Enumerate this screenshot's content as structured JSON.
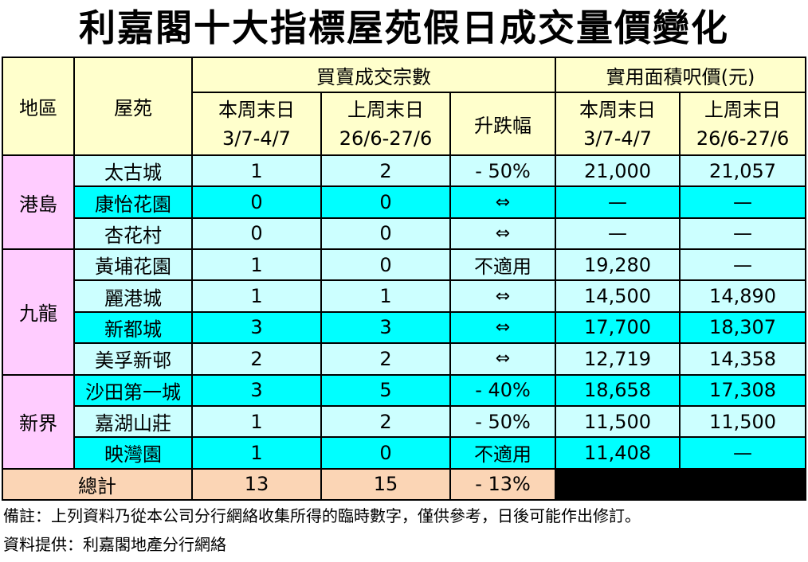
{
  "title": "利嘉閣十大指標屋苑假日成交量價變化",
  "headers": {
    "region": "地區",
    "estate": "屋苑",
    "transactions_group": "買賣成交宗數",
    "price_group": "實用面積呎價(元)",
    "this_weekend": "本周末日",
    "this_weekend_dates": "3/7-4/7",
    "last_weekend": "上周末日",
    "last_weekend_dates": "26/6-27/6",
    "change": "升跌幅"
  },
  "regions": [
    {
      "name": "港島",
      "rows": [
        {
          "estate": "太古城",
          "this": "1",
          "last": "2",
          "change": "- 50%",
          "price_this": "21,000",
          "price_last": "21,057"
        },
        {
          "estate": "康怡花園",
          "this": "0",
          "last": "0",
          "change": "⇔",
          "price_this": "—",
          "price_last": "—"
        },
        {
          "estate": "杏花村",
          "this": "0",
          "last": "0",
          "change": "⇔",
          "price_this": "—",
          "price_last": "—"
        }
      ]
    },
    {
      "name": "九龍",
      "rows": [
        {
          "estate": "黃埔花園",
          "this": "1",
          "last": "0",
          "change": "不適用",
          "price_this": "19,280",
          "price_last": "—"
        },
        {
          "estate": "麗港城",
          "this": "1",
          "last": "1",
          "change": "⇔",
          "price_this": "14,500",
          "price_last": "14,890"
        },
        {
          "estate": "新都城",
          "this": "3",
          "last": "3",
          "change": "⇔",
          "price_this": "17,700",
          "price_last": "18,307"
        },
        {
          "estate": "美孚新邨",
          "this": "2",
          "last": "2",
          "change": "⇔",
          "price_this": "12,719",
          "price_last": "14,358"
        }
      ]
    },
    {
      "name": "新界",
      "rows": [
        {
          "estate": "沙田第一城",
          "this": "3",
          "last": "5",
          "change": "- 40%",
          "price_this": "18,658",
          "price_last": "17,308"
        },
        {
          "estate": "嘉湖山莊",
          "this": "1",
          "last": "2",
          "change": "- 50%",
          "price_this": "11,500",
          "price_last": "11,500"
        },
        {
          "estate": "映灣園",
          "this": "1",
          "last": "0",
          "change": "不適用",
          "price_this": "11,408",
          "price_last": "—"
        }
      ]
    }
  ],
  "total": {
    "label": "總計",
    "this": "13",
    "last": "15",
    "change": "- 13%"
  },
  "notes": {
    "remark": "備註：上列資料乃從本公司分行網絡收集所得的臨時數字，僅供參考，日後可能作出修訂。",
    "source": "資料提供：利嘉閣地產分行網絡"
  },
  "colors": {
    "header_bg": "#ffffcc",
    "region_bg": "#ffccff",
    "row_light_bg": "#ccffff",
    "row_dark_bg": "#00ffff",
    "total_bg": "#fbd5b5",
    "total_blank_bg": "#000000"
  }
}
